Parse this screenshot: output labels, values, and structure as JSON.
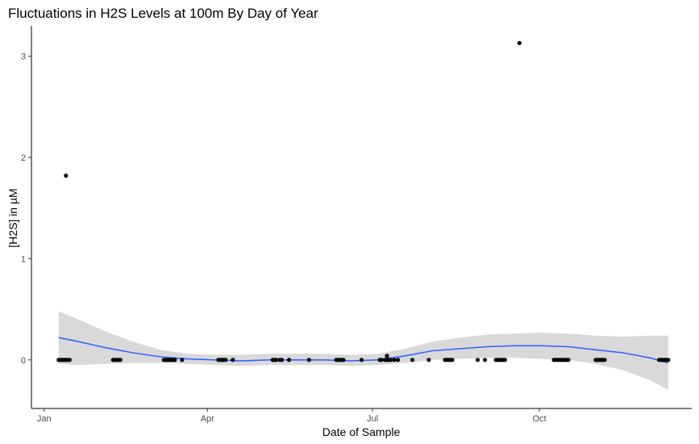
{
  "chart_data": {
    "type": "scatter",
    "title": "Fluctuations in H2S Levels at 100m By Day of Year",
    "xlabel": "Date of Sample",
    "ylabel": "[H2S] in µM",
    "x_ticks": [
      {
        "label": "Jan",
        "day": 1
      },
      {
        "label": "Apr",
        "day": 91
      },
      {
        "label": "Jul",
        "day": 182
      },
      {
        "label": "Oct",
        "day": 274
      }
    ],
    "y_ticks": [
      0,
      1,
      2,
      3
    ],
    "xlim": [
      -6,
      358
    ],
    "ylim": [
      -0.48,
      3.3
    ],
    "grid": false,
    "legend": "none",
    "colors": {
      "points": "#000000",
      "smooth_line": "#3366FF",
      "confidence_band": "#D9D9D9"
    },
    "points": [
      {
        "day": 9,
        "value": 0
      },
      {
        "day": 10,
        "value": 0
      },
      {
        "day": 11,
        "value": 0
      },
      {
        "day": 12,
        "value": 0
      },
      {
        "day": 13,
        "value": 0
      },
      {
        "day": 14,
        "value": 0
      },
      {
        "day": 15,
        "value": 0
      },
      {
        "day": 13,
        "value": 1.82
      },
      {
        "day": 39,
        "value": 0
      },
      {
        "day": 40,
        "value": 0
      },
      {
        "day": 41,
        "value": 0
      },
      {
        "day": 42,
        "value": 0
      },
      {
        "day": 43,
        "value": 0
      },
      {
        "day": 67,
        "value": 0
      },
      {
        "day": 68,
        "value": 0
      },
      {
        "day": 69,
        "value": 0
      },
      {
        "day": 70,
        "value": 0
      },
      {
        "day": 71,
        "value": 0
      },
      {
        "day": 72,
        "value": 0
      },
      {
        "day": 73,
        "value": 0
      },
      {
        "day": 77,
        "value": 0
      },
      {
        "day": 97,
        "value": 0
      },
      {
        "day": 98,
        "value": 0
      },
      {
        "day": 99,
        "value": 0
      },
      {
        "day": 100,
        "value": 0
      },
      {
        "day": 101,
        "value": 0
      },
      {
        "day": 105,
        "value": 0
      },
      {
        "day": 127,
        "value": 0
      },
      {
        "day": 128,
        "value": 0
      },
      {
        "day": 129,
        "value": 0
      },
      {
        "day": 131,
        "value": 0
      },
      {
        "day": 132,
        "value": 0
      },
      {
        "day": 136,
        "value": 0
      },
      {
        "day": 147,
        "value": 0
      },
      {
        "day": 162,
        "value": 0
      },
      {
        "day": 163,
        "value": 0
      },
      {
        "day": 164,
        "value": 0
      },
      {
        "day": 165,
        "value": 0
      },
      {
        "day": 166,
        "value": 0
      },
      {
        "day": 176,
        "value": 0
      },
      {
        "day": 186,
        "value": 0
      },
      {
        "day": 187,
        "value": 0
      },
      {
        "day": 189,
        "value": 0
      },
      {
        "day": 190,
        "value": 0
      },
      {
        "day": 191,
        "value": 0
      },
      {
        "day": 192,
        "value": 0
      },
      {
        "day": 194,
        "value": 0
      },
      {
        "day": 196,
        "value": 0
      },
      {
        "day": 190,
        "value": 0.04
      },
      {
        "day": 204,
        "value": 0
      },
      {
        "day": 213,
        "value": 0
      },
      {
        "day": 222,
        "value": 0
      },
      {
        "day": 223,
        "value": 0
      },
      {
        "day": 224,
        "value": 0
      },
      {
        "day": 225,
        "value": 0
      },
      {
        "day": 226,
        "value": 0
      },
      {
        "day": 240,
        "value": 0
      },
      {
        "day": 244,
        "value": 0
      },
      {
        "day": 250,
        "value": 0
      },
      {
        "day": 251,
        "value": 0
      },
      {
        "day": 252,
        "value": 0
      },
      {
        "day": 253,
        "value": 0
      },
      {
        "day": 254,
        "value": 0
      },
      {
        "day": 255,
        "value": 0
      },
      {
        "day": 263,
        "value": 3.13
      },
      {
        "day": 282,
        "value": 0
      },
      {
        "day": 283,
        "value": 0
      },
      {
        "day": 284,
        "value": 0
      },
      {
        "day": 285,
        "value": 0
      },
      {
        "day": 286,
        "value": 0
      },
      {
        "day": 287,
        "value": 0
      },
      {
        "day": 288,
        "value": 0
      },
      {
        "day": 289,
        "value": 0
      },
      {
        "day": 290,
        "value": 0
      },
      {
        "day": 305,
        "value": 0
      },
      {
        "day": 306,
        "value": 0
      },
      {
        "day": 307,
        "value": 0
      },
      {
        "day": 308,
        "value": 0
      },
      {
        "day": 309,
        "value": 0
      },
      {
        "day": 310,
        "value": 0
      },
      {
        "day": 340,
        "value": 0
      },
      {
        "day": 341,
        "value": 0
      },
      {
        "day": 342,
        "value": 0
      },
      {
        "day": 343,
        "value": 0
      },
      {
        "day": 344,
        "value": 0
      },
      {
        "day": 345,
        "value": 0
      }
    ],
    "smooth": {
      "day": [
        9,
        20,
        35,
        50,
        65,
        80,
        95,
        110,
        125,
        140,
        155,
        170,
        185,
        200,
        215,
        230,
        245,
        260,
        275,
        290,
        305,
        320,
        335,
        345
      ],
      "fit": [
        0.22,
        0.18,
        0.12,
        0.07,
        0.03,
        0.01,
        0.0,
        -0.01,
        0.0,
        0.0,
        0.0,
        -0.01,
        0.0,
        0.04,
        0.09,
        0.11,
        0.13,
        0.14,
        0.14,
        0.13,
        0.1,
        0.07,
        0.02,
        -0.03
      ],
      "lower": [
        -0.04,
        -0.05,
        -0.04,
        -0.03,
        -0.03,
        -0.04,
        -0.05,
        -0.06,
        -0.05,
        -0.05,
        -0.05,
        -0.06,
        -0.05,
        -0.03,
        0.0,
        0.01,
        0.02,
        0.02,
        0.01,
        0.0,
        -0.04,
        -0.1,
        -0.2,
        -0.3
      ],
      "upper": [
        0.48,
        0.4,
        0.28,
        0.18,
        0.1,
        0.06,
        0.05,
        0.05,
        0.06,
        0.06,
        0.06,
        0.05,
        0.06,
        0.11,
        0.18,
        0.22,
        0.25,
        0.26,
        0.27,
        0.26,
        0.24,
        0.23,
        0.24,
        0.24
      ]
    }
  }
}
